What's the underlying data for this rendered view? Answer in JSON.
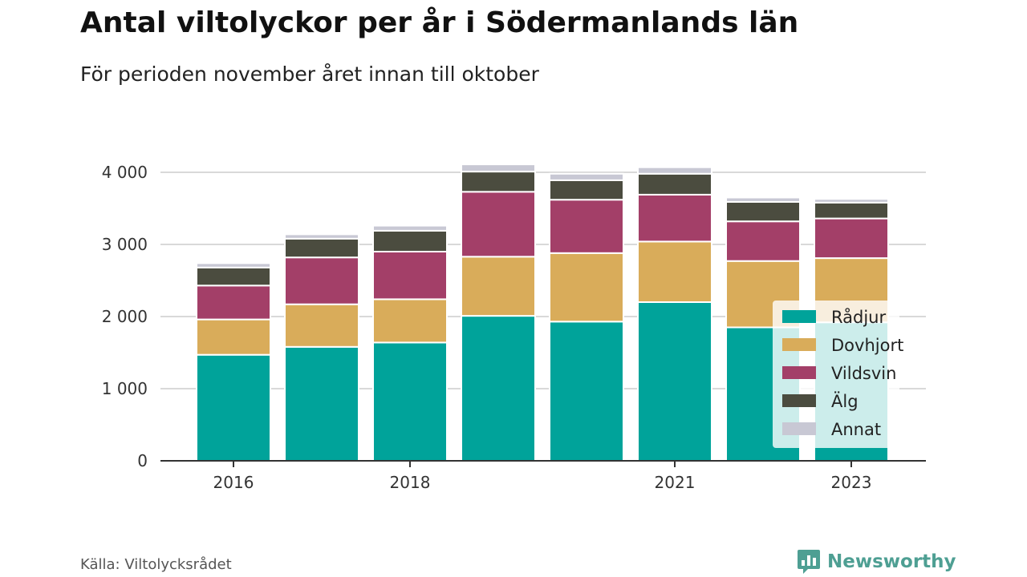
{
  "header": {
    "title": "Antal viltolyckor per år i Södermanlands län",
    "subtitle": "För perioden november året innan till oktober"
  },
  "footer": {
    "source": "Källa: Viltolycksrådet",
    "brand": "Newsworthy",
    "brand_icon": "bar-chart-speech-bubble-icon"
  },
  "colors": {
    "Rådjur": "#00a39a",
    "Dovhjort": "#d9ac5a",
    "Vildsvin": "#a33f68",
    "Älg": "#4b4c3f",
    "Annat": "#c8c8d4",
    "brand": "#4e9f93"
  },
  "chart_data": {
    "type": "bar",
    "stacked": true,
    "categories": [
      "2016",
      "2017",
      "2018",
      "2019",
      "2020",
      "2021",
      "2022",
      "2023"
    ],
    "x_tick_labels": [
      "2016",
      "",
      "2018",
      "",
      "",
      "2021",
      "",
      "2023"
    ],
    "series": [
      {
        "name": "Rådjur",
        "values": [
          1470,
          1580,
          1640,
          2010,
          1930,
          2200,
          1850,
          1920
        ]
      },
      {
        "name": "Dovhjort",
        "values": [
          490,
          590,
          600,
          820,
          950,
          840,
          920,
          890
        ]
      },
      {
        "name": "Vildsvin",
        "values": [
          470,
          650,
          660,
          900,
          740,
          650,
          550,
          550
        ]
      },
      {
        "name": "Älg",
        "values": [
          250,
          260,
          290,
          280,
          270,
          290,
          270,
          220
        ]
      },
      {
        "name": "Annat",
        "values": [
          60,
          60,
          70,
          100,
          90,
          90,
          60,
          50
        ]
      }
    ],
    "y_ticks": [
      0,
      1000,
      2000,
      3000,
      4000
    ],
    "y_tick_labels": [
      "0",
      "1 000",
      "2 000",
      "3 000",
      "4 000"
    ],
    "ylim": [
      0,
      4400
    ],
    "grid": true,
    "legend_position": "bottom-right"
  }
}
